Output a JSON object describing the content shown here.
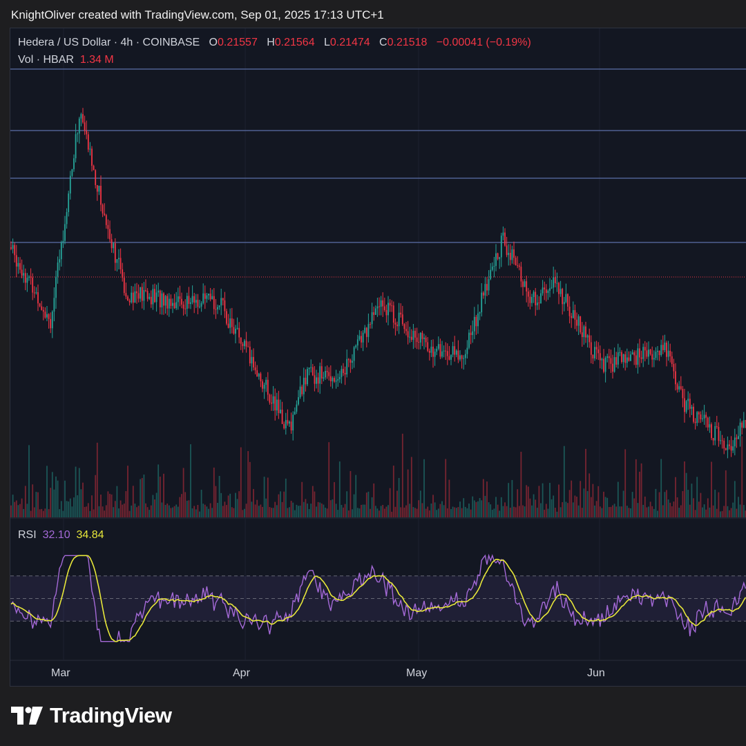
{
  "header": {
    "credit": "KnightOliver created with TradingView.com, Sep 01, 2025 17:13 UTC+1"
  },
  "legend": {
    "symbol": "Hedera / US Dollar · 4h · COINBASE",
    "o_label": "O",
    "o_value": "0.21557",
    "h_label": "H",
    "h_value": "0.21564",
    "l_label": "L",
    "l_value": "0.21474",
    "c_label": "C",
    "c_value": "0.21518",
    "change": "−0.00041 (−0.19%)",
    "vol_label": "Vol · HBAR",
    "vol_value": "1.34 M"
  },
  "rsi_legend": {
    "label": "RSI",
    "rsi_value": "32.10",
    "ma_value": "34.84"
  },
  "footer": {
    "brand": "TradingView"
  },
  "colors": {
    "up": "#26a69a",
    "down": "#f23645",
    "rsi": "#a56ad8",
    "rsi_ma": "#e8e83a",
    "hline": "#5b6fa8",
    "background": "#131722"
  },
  "chart_data": {
    "type": "candlestick",
    "symbol": "HBAR/USD",
    "interval": "4h",
    "x_ticks": [
      "Mar",
      "Apr",
      "May",
      "Jun"
    ],
    "horizontal_levels_count": 4,
    "price_path_approx": [
      {
        "date": "2025-02-18",
        "close": 0.245
      },
      {
        "date": "2025-02-25",
        "close": 0.205
      },
      {
        "date": "2025-03-02",
        "close": 0.32
      },
      {
        "date": "2025-03-06",
        "close": 0.265
      },
      {
        "date": "2025-03-10",
        "close": 0.22
      },
      {
        "date": "2025-03-20",
        "close": 0.215
      },
      {
        "date": "2025-03-26",
        "close": 0.215
      },
      {
        "date": "2025-04-07",
        "close": 0.145
      },
      {
        "date": "2025-04-10",
        "close": 0.175
      },
      {
        "date": "2025-04-16",
        "close": 0.175
      },
      {
        "date": "2025-04-23",
        "close": 0.215
      },
      {
        "date": "2025-05-01",
        "close": 0.19
      },
      {
        "date": "2025-05-07",
        "close": 0.185
      },
      {
        "date": "2025-05-14",
        "close": 0.25
      },
      {
        "date": "2025-05-19",
        "close": 0.215
      },
      {
        "date": "2025-05-23",
        "close": 0.225
      },
      {
        "date": "2025-05-31",
        "close": 0.18
      },
      {
        "date": "2025-06-11",
        "close": 0.19
      },
      {
        "date": "2025-06-14",
        "close": 0.16
      },
      {
        "date": "2025-06-22",
        "close": 0.135
      },
      {
        "date": "2025-06-25",
        "close": 0.155
      }
    ],
    "rsi_bands": [
      70,
      50,
      30
    ]
  }
}
